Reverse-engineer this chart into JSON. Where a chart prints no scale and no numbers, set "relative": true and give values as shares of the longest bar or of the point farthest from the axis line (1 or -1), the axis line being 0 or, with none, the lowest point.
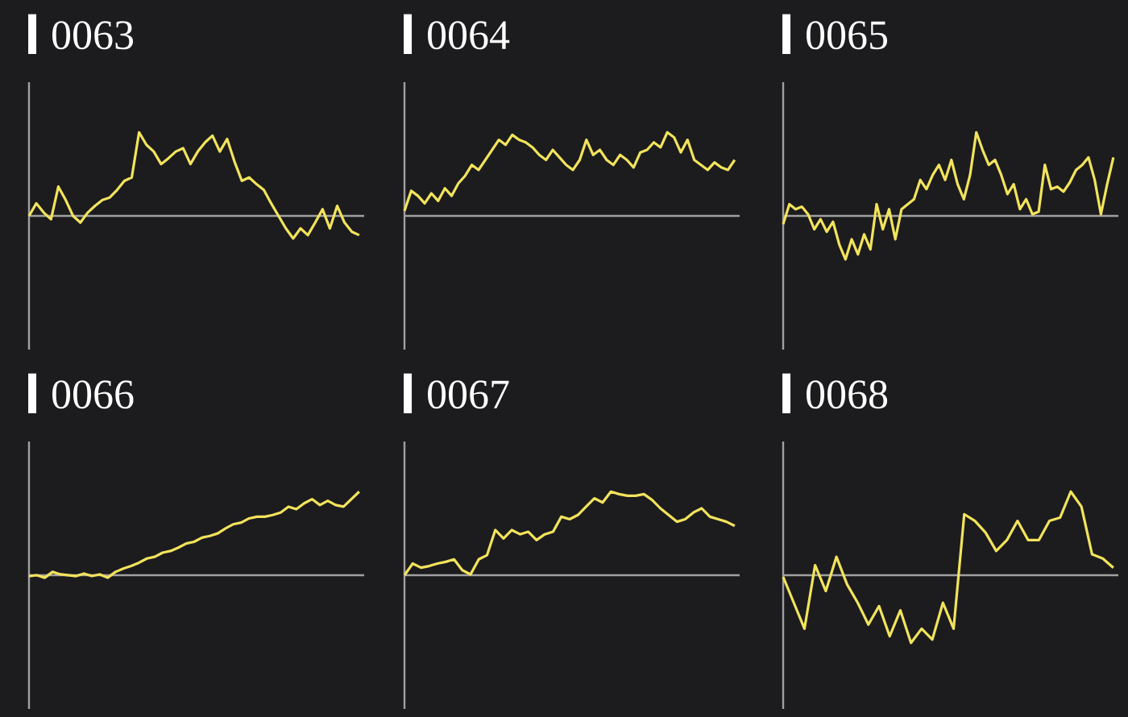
{
  "chart_data": [
    {
      "type": "line",
      "title": "0063",
      "relative": true,
      "color": "#f2e35c",
      "categories": [
        null,
        null,
        null,
        null,
        null,
        null,
        null,
        null,
        null,
        null,
        null,
        null,
        null,
        null,
        null,
        null,
        null,
        null,
        null,
        null,
        null,
        null,
        null,
        null,
        null,
        null,
        null,
        null,
        null,
        null,
        null,
        null,
        null,
        null,
        null,
        null,
        null,
        null,
        null,
        null,
        null,
        null,
        null,
        null,
        null,
        null
      ],
      "values": [
        0,
        0.15,
        0.04,
        -0.04,
        0.35,
        0.19,
        0,
        -0.08,
        0.04,
        0.12,
        0.19,
        0.22,
        0.31,
        0.42,
        0.46,
        1,
        0.85,
        0.77,
        0.62,
        0.69,
        0.77,
        0.81,
        0.62,
        0.77,
        0.88,
        0.96,
        0.77,
        0.92,
        0.65,
        0.42,
        0.46,
        0.38,
        0.31,
        0.15,
        0,
        -0.15,
        -0.27,
        -0.15,
        -0.23,
        -0.08,
        0.08,
        -0.15,
        0.12,
        -0.08,
        -0.19,
        -0.23
      ]
    },
    {
      "type": "line",
      "title": "0064",
      "relative": true,
      "color": "#f2e35c",
      "categories": [
        null,
        null,
        null,
        null,
        null,
        null,
        null,
        null,
        null,
        null,
        null,
        null,
        null,
        null,
        null,
        null,
        null,
        null,
        null,
        null,
        null,
        null,
        null,
        null,
        null,
        null,
        null,
        null,
        null,
        null,
        null,
        null,
        null,
        null,
        null,
        null,
        null,
        null,
        null,
        null,
        null,
        null,
        null,
        null,
        null,
        null,
        null,
        null,
        null,
        null
      ],
      "values": [
        0.06,
        0.3,
        0.24,
        0.15,
        0.27,
        0.18,
        0.33,
        0.24,
        0.39,
        0.48,
        0.61,
        0.55,
        0.67,
        0.79,
        0.91,
        0.85,
        0.97,
        0.91,
        0.88,
        0.82,
        0.73,
        0.67,
        0.79,
        0.7,
        0.61,
        0.55,
        0.67,
        0.91,
        0.73,
        0.79,
        0.67,
        0.61,
        0.73,
        0.67,
        0.58,
        0.76,
        0.79,
        0.88,
        0.82,
        1,
        0.94,
        0.76,
        0.91,
        0.67,
        0.61,
        0.55,
        0.64,
        0.58,
        0.55,
        0.67
      ]
    },
    {
      "type": "line",
      "title": "0065",
      "relative": true,
      "color": "#f2e35c",
      "categories": [
        null,
        null,
        null,
        null,
        null,
        null,
        null,
        null,
        null,
        null,
        null,
        null,
        null,
        null,
        null,
        null,
        null,
        null,
        null,
        null,
        null,
        null,
        null,
        null,
        null,
        null,
        null,
        null,
        null,
        null,
        null,
        null,
        null,
        null,
        null,
        null,
        null,
        null,
        null,
        null,
        null,
        null,
        null,
        null,
        null,
        null,
        null,
        null,
        null,
        null,
        null,
        null,
        null,
        null
      ],
      "values": [
        -0.1,
        0.14,
        0.08,
        0.11,
        0.02,
        -0.16,
        -0.04,
        -0.19,
        -0.07,
        -0.34,
        -0.52,
        -0.28,
        -0.46,
        -0.22,
        -0.4,
        0.14,
        -0.16,
        0.08,
        -0.28,
        0.08,
        0.14,
        0.2,
        0.43,
        0.32,
        0.49,
        0.61,
        0.43,
        0.67,
        0.38,
        0.2,
        0.49,
        1,
        0.79,
        0.61,
        0.67,
        0.49,
        0.26,
        0.38,
        0.08,
        0.2,
        0.02,
        0.05,
        0.61,
        0.32,
        0.35,
        0.29,
        0.4,
        0.55,
        0.61,
        0.7,
        0.43,
        0.02,
        0.38,
        0.7
      ]
    },
    {
      "type": "line",
      "title": "0066",
      "relative": true,
      "color": "#f2e35c",
      "categories": [
        null,
        null,
        null,
        null,
        null,
        null,
        null,
        null,
        null,
        null,
        null,
        null,
        null,
        null,
        null,
        null,
        null,
        null,
        null,
        null,
        null,
        null,
        null,
        null,
        null,
        null,
        null,
        null,
        null,
        null,
        null,
        null,
        null,
        null,
        null,
        null,
        null,
        null,
        null,
        null,
        null,
        null,
        null
      ],
      "values": [
        -0.01,
        0,
        -0.03,
        0.04,
        0.01,
        0,
        -0.01,
        0.02,
        -0.01,
        0.01,
        -0.03,
        0.04,
        0.08,
        0.11,
        0.15,
        0.2,
        0.22,
        0.27,
        0.29,
        0.33,
        0.38,
        0.4,
        0.45,
        0.47,
        0.5,
        0.56,
        0.61,
        0.63,
        0.68,
        0.7,
        0.7,
        0.72,
        0.75,
        0.82,
        0.79,
        0.86,
        0.91,
        0.84,
        0.89,
        0.84,
        0.82,
        0.91,
        1
      ]
    },
    {
      "type": "line",
      "title": "0067",
      "relative": true,
      "color": "#f2e35c",
      "categories": [
        null,
        null,
        null,
        null,
        null,
        null,
        null,
        null,
        null,
        null,
        null,
        null,
        null,
        null,
        null,
        null,
        null,
        null,
        null,
        null,
        null,
        null,
        null,
        null,
        null,
        null,
        null,
        null,
        null,
        null,
        null,
        null,
        null,
        null,
        null,
        null,
        null,
        null,
        null,
        null,
        null
      ],
      "values": [
        0,
        0.14,
        0.09,
        0.11,
        0.14,
        0.16,
        0.19,
        0.06,
        0.01,
        0.19,
        0.24,
        0.54,
        0.44,
        0.54,
        0.49,
        0.52,
        0.42,
        0.49,
        0.52,
        0.7,
        0.67,
        0.72,
        0.82,
        0.92,
        0.87,
        1,
        0.97,
        0.95,
        0.95,
        0.97,
        0.9,
        0.8,
        0.72,
        0.64,
        0.67,
        0.75,
        0.8,
        0.7,
        0.67,
        0.64,
        0.59
      ]
    },
    {
      "type": "line",
      "title": "0068",
      "relative": true,
      "color": "#f2e35c",
      "categories": [
        null,
        null,
        null,
        null,
        null,
        null,
        null,
        null,
        null,
        null,
        null,
        null,
        null,
        null,
        null,
        null,
        null,
        null,
        null,
        null,
        null,
        null,
        null,
        null,
        null,
        null,
        null,
        null,
        null,
        null,
        null,
        null
      ],
      "values": [
        -0.02,
        -0.33,
        -0.64,
        0.12,
        -0.19,
        0.22,
        -0.11,
        -0.33,
        -0.59,
        -0.37,
        -0.73,
        -0.42,
        -0.81,
        -0.64,
        -0.77,
        -0.33,
        -0.64,
        0.73,
        0.65,
        0.51,
        0.29,
        0.42,
        0.65,
        0.42,
        0.42,
        0.65,
        0.69,
        1,
        0.82,
        0.25,
        0.2,
        0.09
      ]
    }
  ]
}
